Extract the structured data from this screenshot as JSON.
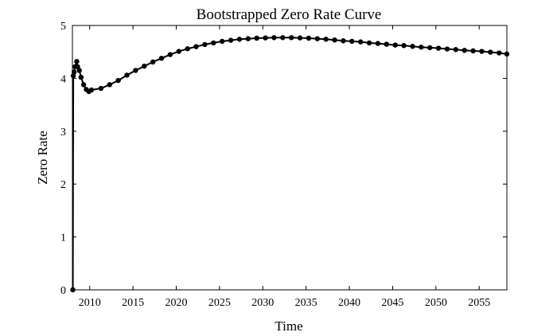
{
  "chart_data": {
    "type": "line",
    "title": "Bootstrapped Zero Rate Curve",
    "xlabel": "Time",
    "ylabel": "Zero Rate",
    "xlim": [
      2008,
      2058.2
    ],
    "ylim": [
      0,
      5
    ],
    "xticks": [
      2010,
      2015,
      2020,
      2025,
      2030,
      2035,
      2040,
      2045,
      2050,
      2055
    ],
    "yticks": [
      0,
      1,
      2,
      3,
      4,
      5
    ],
    "grid": false,
    "legend": "none",
    "series": [
      {
        "color": "#000000",
        "marker": "circle",
        "x": [
          2008.05,
          2008.1,
          2008.2,
          2008.3,
          2008.5,
          2008.6,
          2008.8,
          2009.0,
          2009.3,
          2009.6,
          2009.9,
          2010.2,
          2011.3,
          2012.3,
          2013.3,
          2014.3,
          2015.3,
          2016.3,
          2017.3,
          2018.3,
          2019.3,
          2020.3,
          2021.3,
          2022.3,
          2023.3,
          2024.3,
          2025.3,
          2026.3,
          2027.3,
          2028.3,
          2029.3,
          2030.3,
          2031.3,
          2032.3,
          2033.3,
          2034.3,
          2035.3,
          2036.3,
          2037.3,
          2038.3,
          2039.3,
          2040.3,
          2041.3,
          2042.3,
          2043.3,
          2044.3,
          2045.3,
          2046.3,
          2047.3,
          2048.3,
          2049.3,
          2050.3,
          2051.3,
          2052.3,
          2053.3,
          2054.3,
          2055.3,
          2056.3,
          2057.3,
          2058.2
        ],
        "y": [
          0.0,
          4.05,
          4.12,
          4.22,
          4.32,
          4.22,
          4.15,
          4.02,
          3.88,
          3.79,
          3.75,
          3.78,
          3.81,
          3.88,
          3.96,
          4.06,
          4.15,
          4.23,
          4.31,
          4.38,
          4.45,
          4.51,
          4.56,
          4.6,
          4.64,
          4.67,
          4.7,
          4.72,
          4.74,
          4.75,
          4.76,
          4.765,
          4.77,
          4.77,
          4.77,
          4.765,
          4.76,
          4.75,
          4.74,
          4.725,
          4.71,
          4.7,
          4.69,
          4.67,
          4.66,
          4.645,
          4.63,
          4.62,
          4.605,
          4.59,
          4.58,
          4.57,
          4.555,
          4.545,
          4.53,
          4.52,
          4.51,
          4.495,
          4.48,
          4.46
        ]
      }
    ]
  }
}
